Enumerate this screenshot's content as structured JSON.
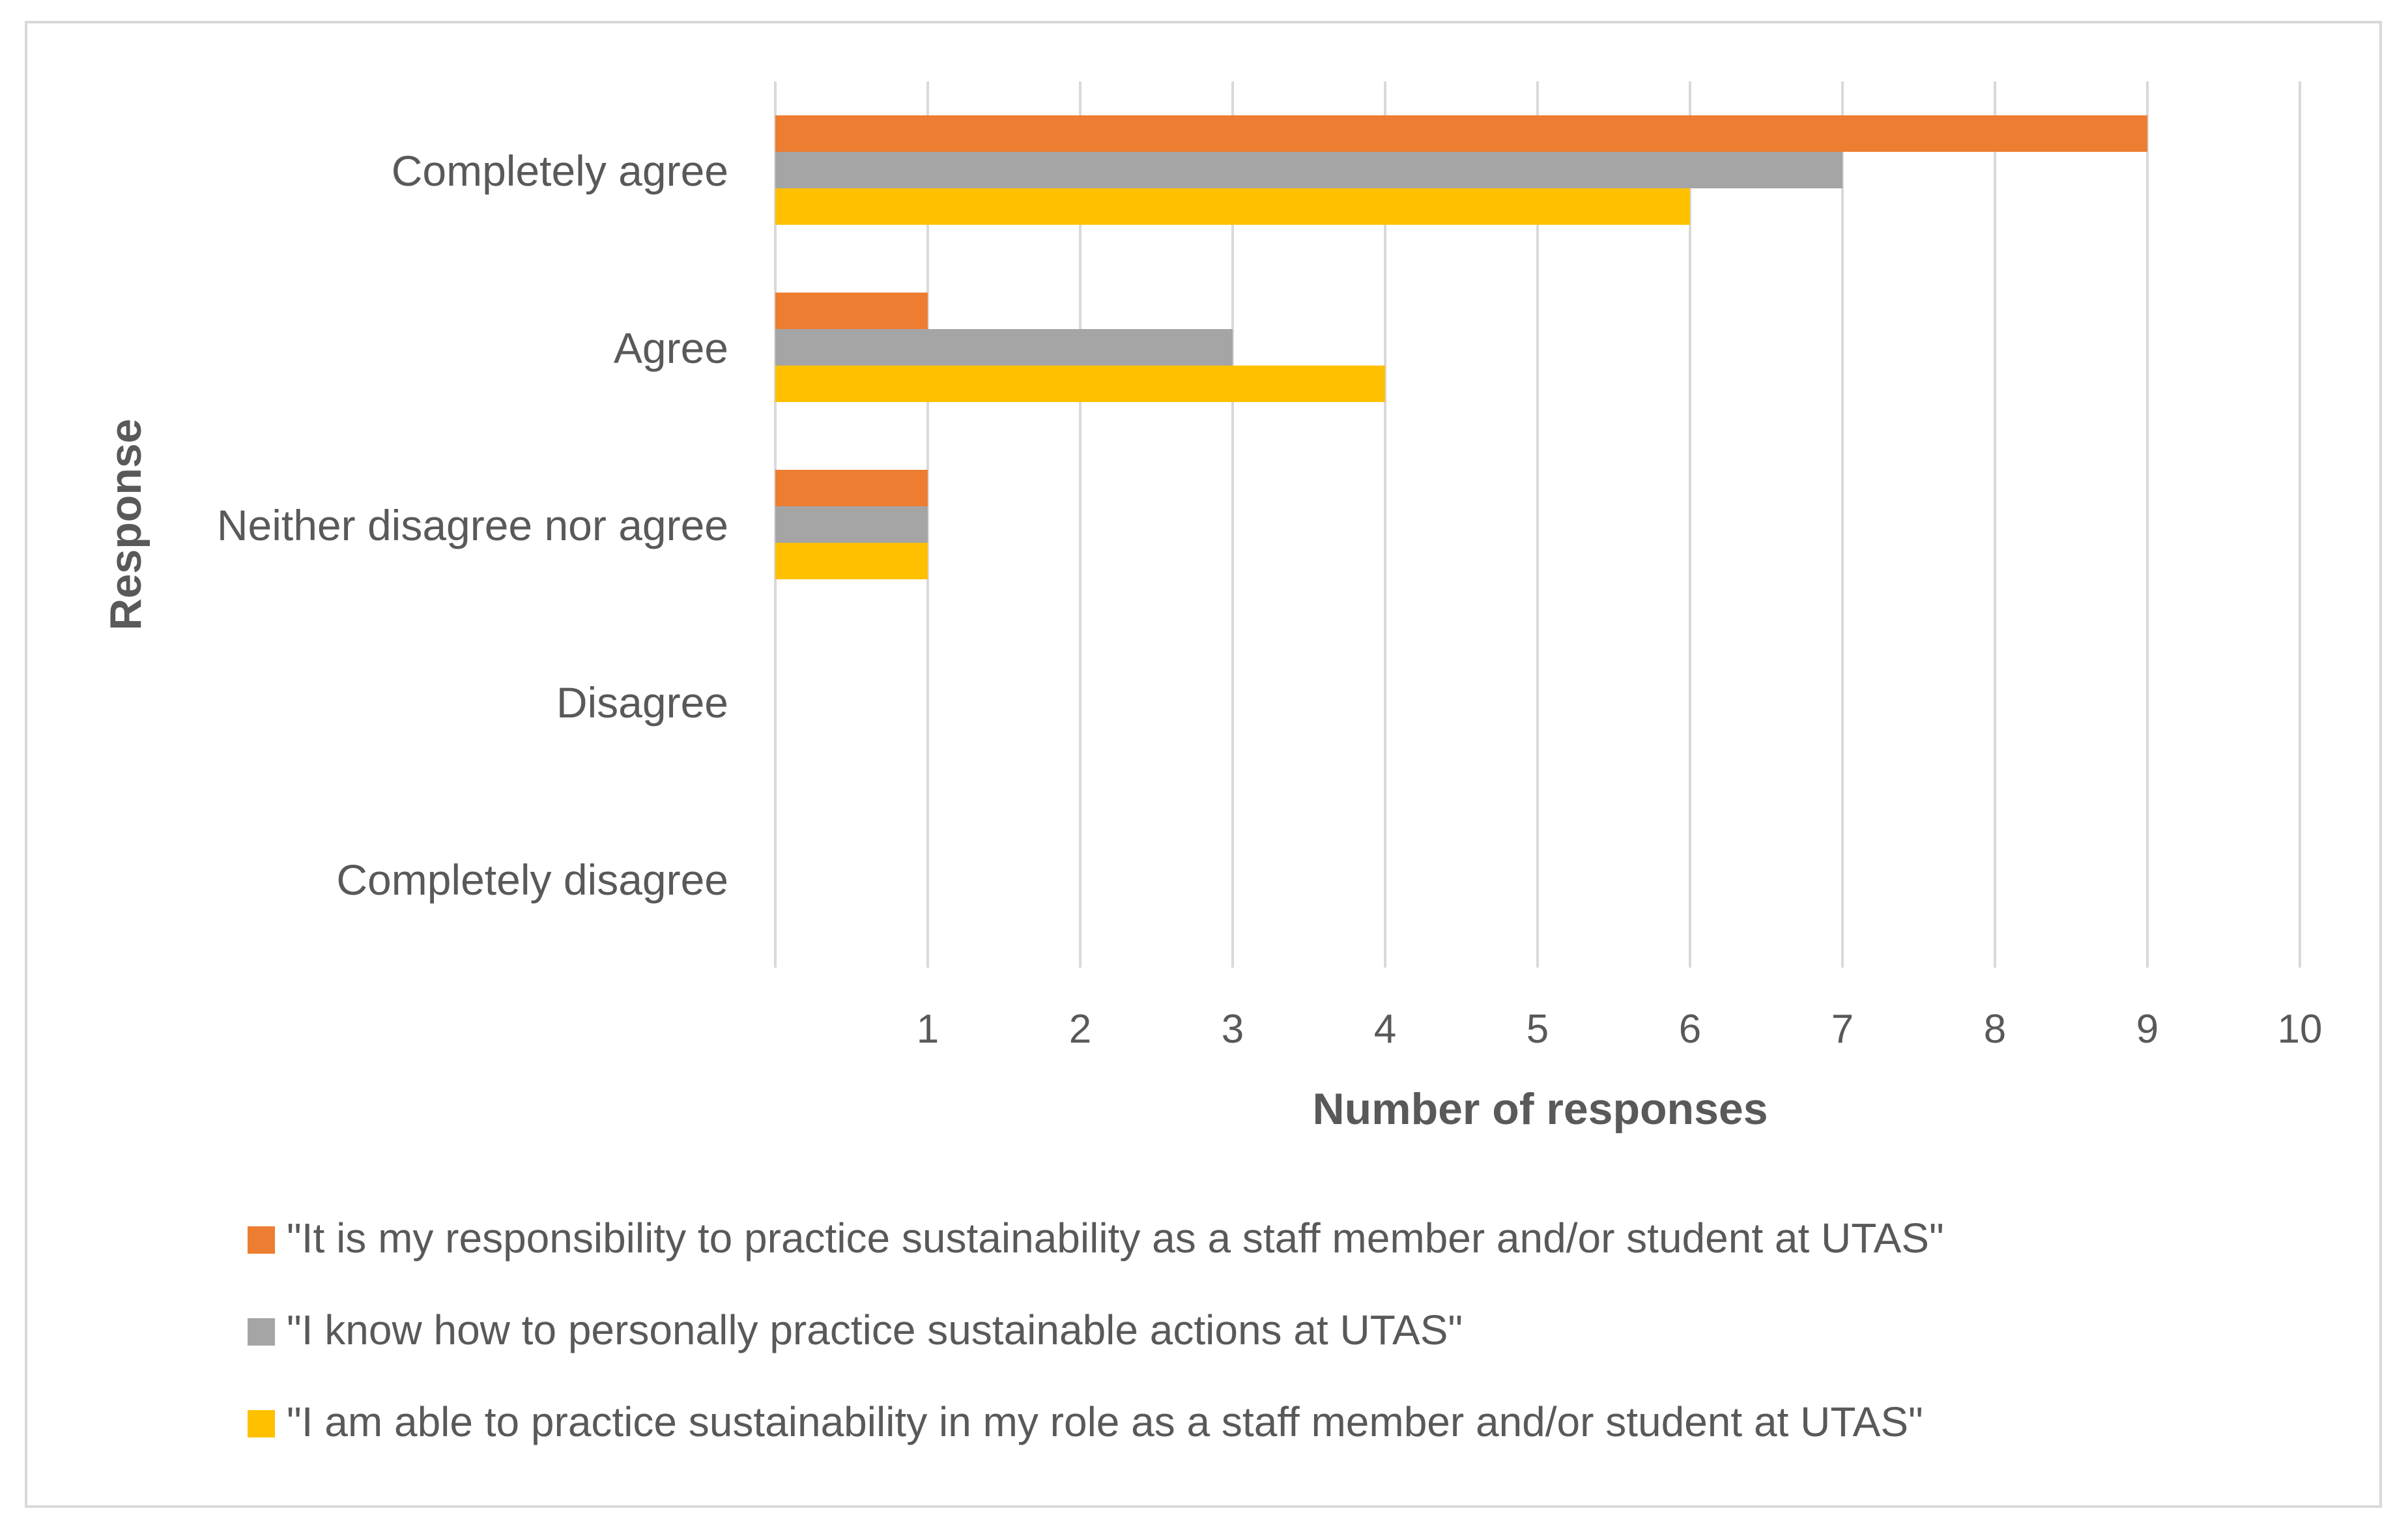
{
  "chart_data": {
    "type": "bar",
    "orientation": "horizontal",
    "title": "",
    "xlabel": "Number of responses",
    "ylabel": "Response",
    "xlim": [
      0,
      10
    ],
    "x_ticks": [
      "1",
      "2",
      "3",
      "4",
      "5",
      "6",
      "7",
      "8",
      "9",
      "10"
    ],
    "grid": true,
    "legend_position": "bottom",
    "categories": [
      "Completely agree",
      "Agree",
      "Neither disagree nor agree",
      "Disagree",
      "Completely disagree"
    ],
    "series": [
      {
        "name": "\"It is my responsibility to practice sustainability as a staff member and/or student at UTAS\"",
        "color": "#ED7D31",
        "values": [
          9,
          1,
          1,
          0,
          0
        ]
      },
      {
        "name": "\"I know how to personally practice sustainable actions at UTAS\"",
        "color": "#A5A5A5",
        "values": [
          7,
          3,
          1,
          0,
          0
        ]
      },
      {
        "name": "\"I am able to practice sustainability in my role as a staff member and/or student at UTAS\"",
        "color": "#FFC000",
        "values": [
          6,
          4,
          1,
          0,
          0
        ]
      }
    ]
  }
}
